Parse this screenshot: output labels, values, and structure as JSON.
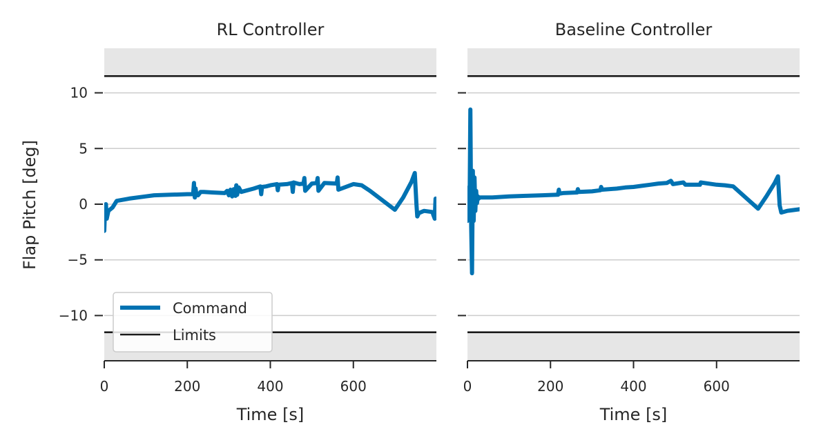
{
  "chart_data": [
    {
      "type": "line",
      "title": "RL Controller",
      "xlabel": "Time [s]",
      "ylabel": "Flap Pitch [deg]",
      "xlim": [
        0,
        800
      ],
      "ylim": [
        -14,
        14
      ],
      "xticks": [
        "0",
        "200",
        "400",
        "600"
      ],
      "yticks": [
        "10",
        "5",
        "0",
        "−5",
        "−10"
      ],
      "grid": "horizontal",
      "limits": [
        11.5,
        -11.5
      ],
      "legend": {
        "placement": "lower-left",
        "entries": [
          "Command",
          "Limits"
        ]
      },
      "colors": {
        "command": "#0072b2",
        "limits": "#1a1a1a",
        "shade": "#e6e6e6"
      },
      "series": [
        {
          "name": "Command",
          "x": [
            0,
            2,
            4,
            6,
            10,
            20,
            30,
            60,
            100,
            120,
            160,
            200,
            214,
            216,
            218,
            220,
            222,
            226,
            232,
            240,
            260,
            290,
            296,
            300,
            304,
            308,
            312,
            316,
            318,
            320,
            324,
            330,
            360,
            376,
            378,
            380,
            390,
            400,
            416,
            418,
            420,
            440,
            452,
            454,
            456,
            470,
            480,
            482,
            484,
            500,
            512,
            514,
            516,
            530,
            560,
            562,
            564,
            600,
            620,
            640,
            700,
            720,
            740,
            748,
            752,
            754,
            758,
            770,
            790,
            796,
            798,
            800
          ],
          "y": [
            -2.4,
            -0.3,
            0.0,
            -1.3,
            -0.6,
            -0.3,
            0.3,
            0.5,
            0.7,
            0.8,
            0.85,
            0.9,
            0.9,
            1.9,
            0.6,
            1.4,
            0.8,
            0.8,
            1.1,
            1.1,
            1.05,
            1.0,
            1.2,
            0.8,
            1.3,
            0.7,
            1.35,
            0.75,
            1.7,
            0.85,
            1.5,
            1.1,
            1.4,
            1.6,
            0.9,
            1.55,
            1.6,
            1.7,
            1.8,
            1.25,
            1.75,
            1.8,
            1.9,
            1.1,
            1.95,
            1.8,
            1.85,
            2.35,
            1.2,
            1.85,
            1.9,
            2.35,
            1.2,
            1.9,
            1.85,
            2.4,
            1.3,
            1.8,
            1.7,
            1.2,
            -0.5,
            0.6,
            2.0,
            2.8,
            0.0,
            -1.1,
            -0.8,
            -0.6,
            -0.7,
            -1.3,
            0.5,
            -0.6
          ]
        },
        {
          "name": "Limits",
          "y_upper": 11.5,
          "y_lower": -11.5
        }
      ]
    },
    {
      "type": "line",
      "title": "Baseline Controller",
      "xlabel": "Time [s]",
      "ylabel": "",
      "xlim": [
        0,
        800
      ],
      "ylim": [
        -14,
        14
      ],
      "xticks": [
        "0",
        "200",
        "400",
        "600"
      ],
      "yticks": [
        "",
        "",
        "",
        "",
        ""
      ],
      "grid": "horizontal",
      "limits": [
        11.5,
        -11.5
      ],
      "colors": {
        "command": "#0072b2",
        "limits": "#1a1a1a",
        "shade": "#e6e6e6"
      },
      "series": [
        {
          "name": "Command",
          "x": [
            0,
            3,
            5,
            7,
            9,
            11,
            13,
            15,
            17,
            19,
            21,
            23,
            25,
            27,
            30,
            60,
            100,
            140,
            180,
            218,
            220,
            222,
            230,
            264,
            266,
            268,
            300,
            320,
            322,
            324,
            360,
            380,
            400,
            420,
            440,
            460,
            480,
            490,
            495,
            520,
            525,
            560,
            562,
            600,
            620,
            640,
            700,
            720,
            740,
            748,
            752,
            756,
            770,
            790,
            800
          ],
          "y": [
            -1.5,
            1.5,
            -1.0,
            8.5,
            -2.0,
            -6.2,
            3.0,
            -1.5,
            2.4,
            -0.6,
            1.2,
            0.1,
            0.7,
            0.5,
            0.6,
            0.6,
            0.7,
            0.75,
            0.8,
            0.85,
            1.3,
            0.95,
            1.0,
            1.05,
            1.35,
            1.1,
            1.15,
            1.25,
            1.55,
            1.3,
            1.4,
            1.5,
            1.55,
            1.65,
            1.75,
            1.85,
            1.9,
            2.1,
            1.8,
            1.95,
            1.75,
            1.75,
            1.95,
            1.75,
            1.7,
            1.6,
            -0.4,
            0.7,
            1.9,
            2.5,
            -0.1,
            -0.75,
            -0.6,
            -0.5,
            -0.45
          ]
        },
        {
          "name": "Limits",
          "y_upper": 11.5,
          "y_lower": -11.5
        }
      ]
    }
  ]
}
